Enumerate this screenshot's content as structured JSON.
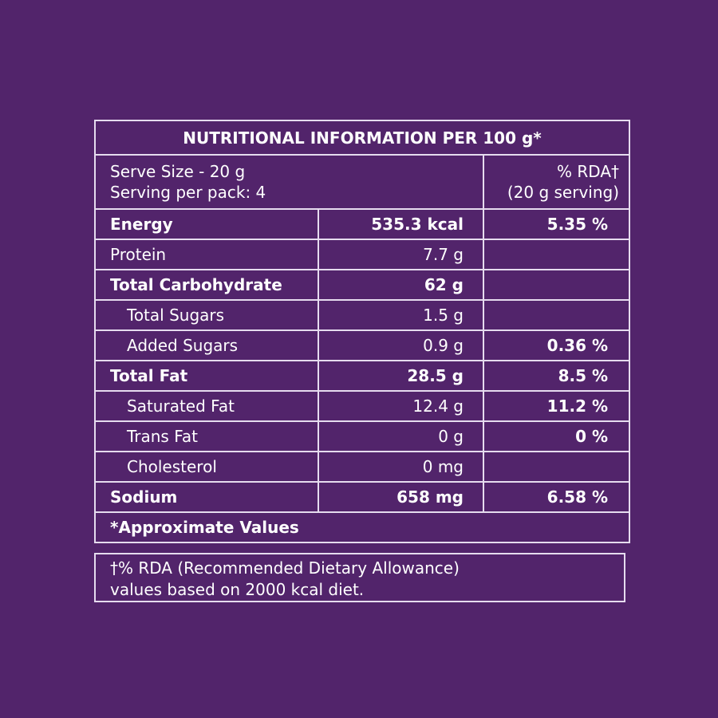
{
  "table": {
    "title": "NUTRITIONAL INFORMATION PER 100 g*",
    "serve_size": "Serve Size - 20 g",
    "servings": "Serving per pack: 4",
    "rda_header": "% RDA†",
    "rda_basis": "(20 g serving)",
    "rows": [
      {
        "label": "Energy",
        "amount": "535.3 kcal",
        "rda": "5.35 %"
      },
      {
        "label": "Protein",
        "amount": "7.7 g"
      },
      {
        "label": "Total Carbohydrate",
        "amount": "62 g"
      },
      {
        "label": "Total Sugars",
        "amount": "1.5 g"
      },
      {
        "label": "Added Sugars",
        "amount": "0.9 g",
        "rda": "0.36 %"
      },
      {
        "label": "Total Fat",
        "amount": "28.5 g",
        "rda": "8.5 %"
      },
      {
        "label": "Saturated Fat",
        "amount": "12.4 g",
        "rda": "11.2 %"
      },
      {
        "label": "Trans Fat",
        "amount": "0 g",
        "rda": "0 %"
      },
      {
        "label": "Cholesterol",
        "amount": "0 mg"
      },
      {
        "label": "Sodium",
        "amount": "658 mg",
        "rda": "6.58 %"
      }
    ],
    "footer": "*Approximate Values"
  },
  "note": {
    "line1": "†% RDA (Recommended Dietary Allowance)",
    "line2": "values based on 2000 kcal diet."
  }
}
